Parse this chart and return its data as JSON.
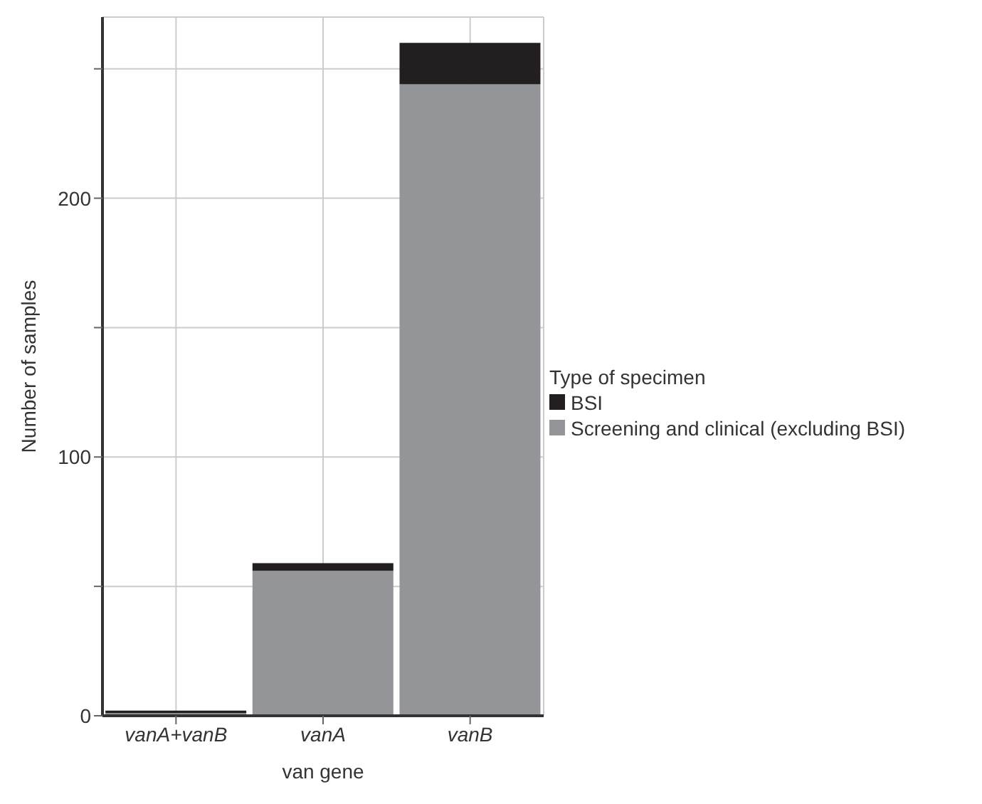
{
  "chart_data": {
    "type": "bar",
    "stacked": true,
    "xlabel": "van gene",
    "ylabel": "Number of samples",
    "legend_title": "Type of specimen",
    "categories": [
      "vanA+vanB",
      "vanA",
      "vanB"
    ],
    "series": [
      {
        "name": "Screening and clinical (excluding BSI)",
        "color": "#939598",
        "values": [
          1,
          56,
          244
        ]
      },
      {
        "name": "BSI",
        "color": "#231f20",
        "values": [
          1,
          3,
          16
        ]
      }
    ],
    "ylim": [
      0,
      270
    ],
    "yticks": [
      0,
      {
        "value": 50,
        "label": null
      },
      100,
      {
        "value": 150,
        "label": null
      },
      200,
      {
        "value": 250,
        "label": null
      }
    ],
    "grid": true,
    "legend": "right"
  }
}
